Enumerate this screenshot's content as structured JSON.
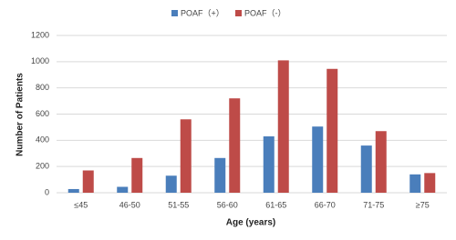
{
  "chart_data": {
    "type": "bar",
    "categories": [
      "≤45",
      "46-50",
      "51-55",
      "56-60",
      "61-65",
      "66-70",
      "71-75",
      "≥75"
    ],
    "series": [
      {
        "name": "POAF（+）",
        "color": "#4a7ebb",
        "values": [
          28,
          45,
          130,
          265,
          430,
          505,
          360,
          140
        ]
      },
      {
        "name": "POAF（-）",
        "color": "#be4b48",
        "values": [
          170,
          265,
          560,
          720,
          1010,
          945,
          470,
          150
        ]
      }
    ],
    "x_label": "Age (years)",
    "y_label": "Number of Patients",
    "ylim": [
      0,
      1200
    ],
    "yticks": [
      0,
      200,
      400,
      600,
      800,
      1000,
      1200
    ],
    "grid": true,
    "legend": "top"
  }
}
